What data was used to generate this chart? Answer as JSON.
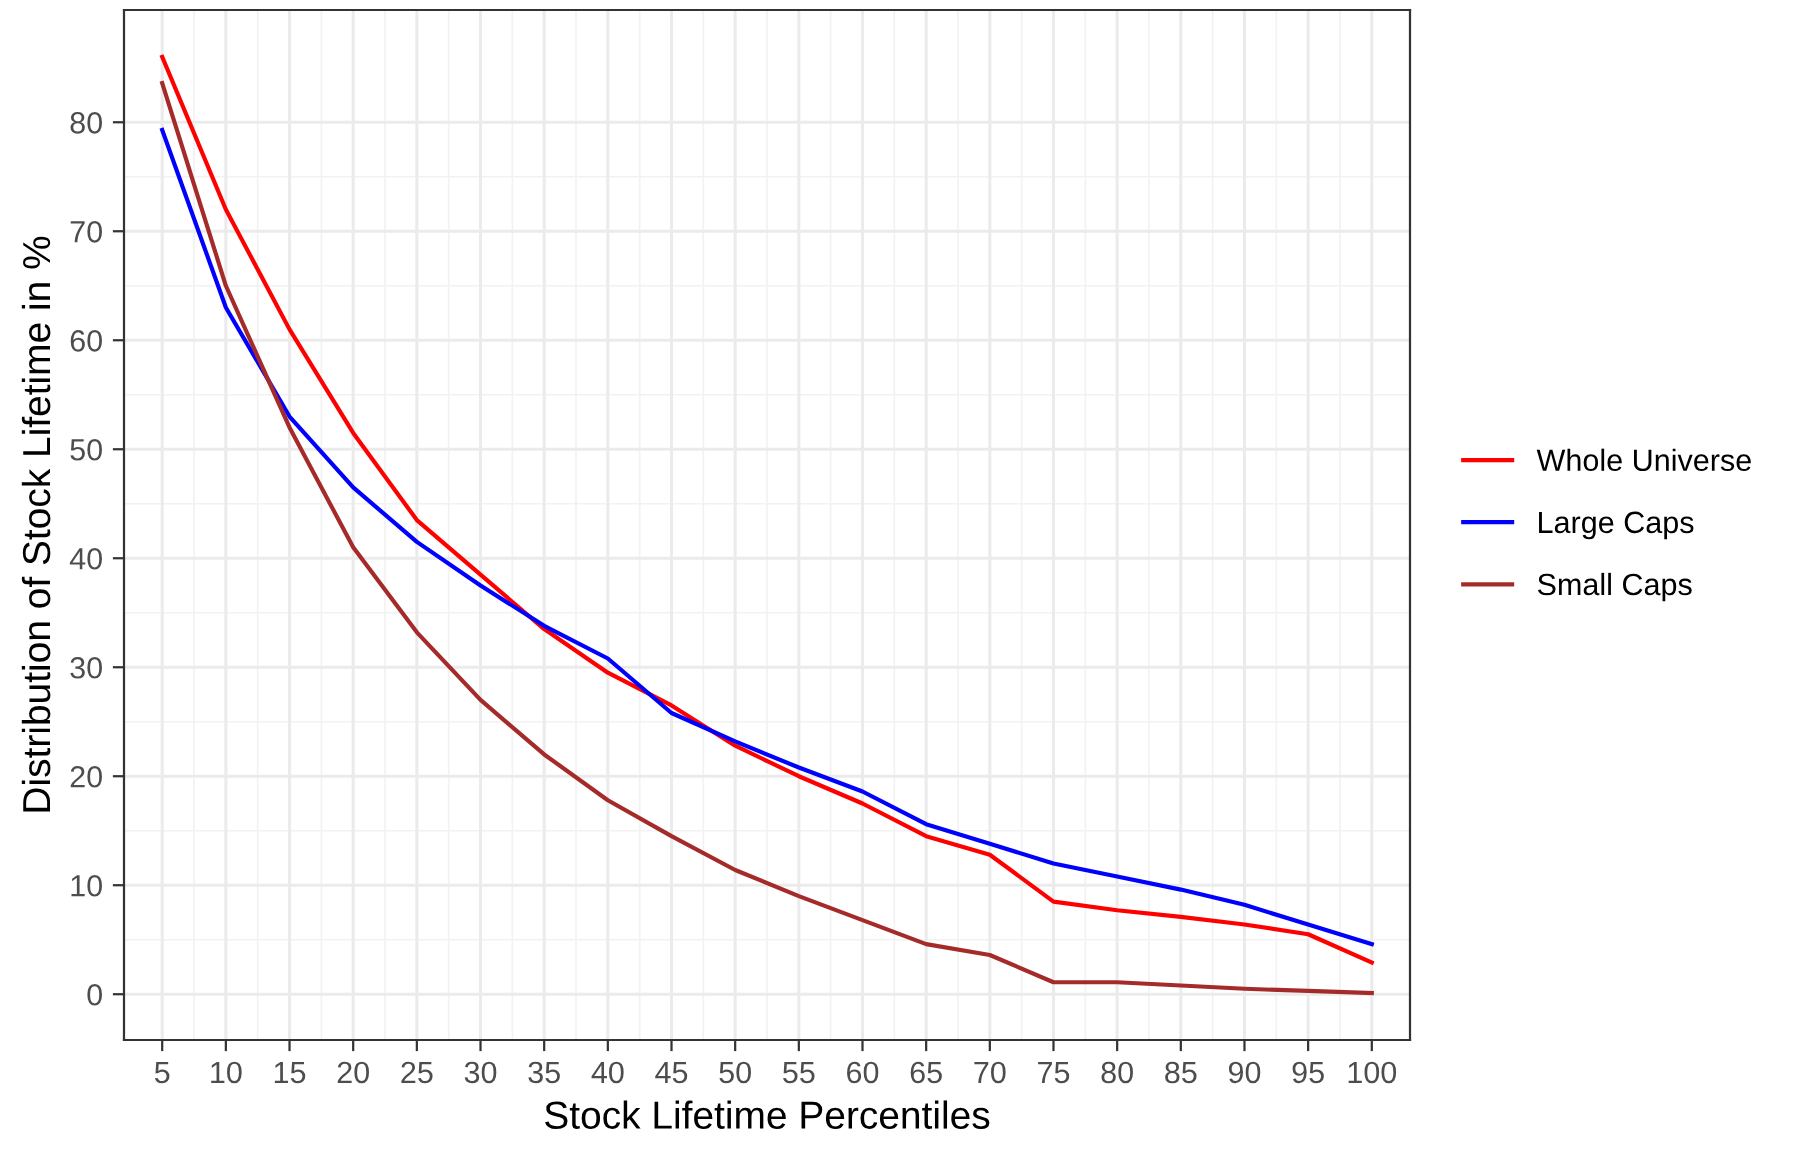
{
  "chart_data": {
    "type": "line",
    "xlabel": "Stock Lifetime Percentiles",
    "ylabel": "Distribution of Stock Lifetime in %",
    "categories": [
      "5",
      "10",
      "15",
      "20",
      "25",
      "30",
      "35",
      "40",
      "45",
      "50",
      "55",
      "60",
      "65",
      "70",
      "75",
      "80",
      "85",
      "90",
      "95",
      "100"
    ],
    "series": [
      {
        "name": "Whole Universe",
        "color": "#ff0000",
        "values": [
          86,
          72,
          61,
          51.5,
          43.5,
          38.5,
          33.5,
          29.5,
          26.5,
          22.8,
          20,
          17.5,
          14.5,
          12.8,
          8.5,
          7.7,
          7.1,
          6.4,
          5.5,
          2.9
        ]
      },
      {
        "name": "Large Caps",
        "color": "#0000ff",
        "values": [
          79.3,
          63,
          53,
          46.5,
          41.5,
          37.5,
          33.8,
          30.8,
          25.8,
          23.2,
          20.8,
          18.6,
          15.6,
          13.8,
          12,
          10.8,
          9.6,
          8.2,
          6.4,
          4.6
        ]
      },
      {
        "name": "Small Caps",
        "color": "#a52a2a",
        "values": [
          83.6,
          65,
          52,
          41,
          33.2,
          27,
          22,
          17.8,
          14.5,
          11.4,
          9,
          6.8,
          4.6,
          3.6,
          1.1,
          1.1,
          0.8,
          0.5,
          0.3,
          0.1
        ]
      }
    ],
    "ylim": [
      -4.2,
      90.3
    ],
    "yticks": [
      0,
      10,
      20,
      30,
      40,
      50,
      60,
      70,
      80
    ],
    "grid": true,
    "legend": "right",
    "marker": "none",
    "line_style": "solid"
  }
}
